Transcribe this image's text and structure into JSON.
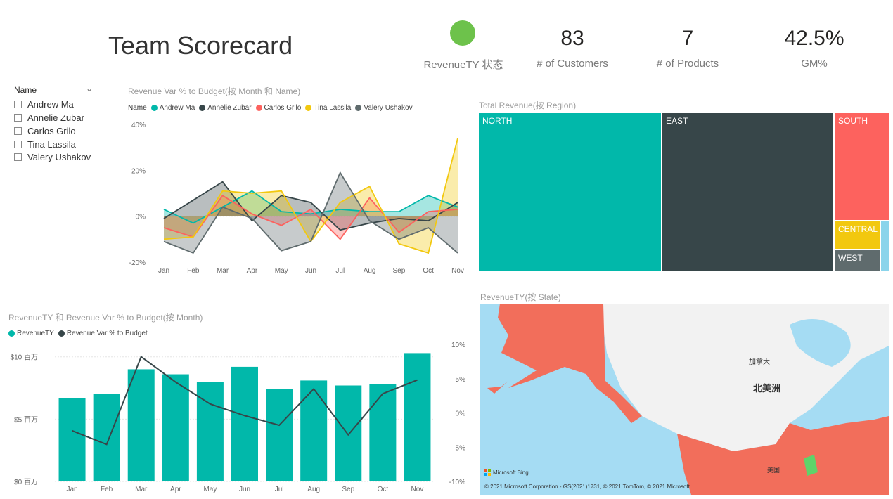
{
  "page_title": "Team Scorecard",
  "kpis": {
    "status_label": "RevenueTY 状态",
    "status_color": "#6dc24b",
    "customers_value": "83",
    "customers_label": "# of Customers",
    "products_value": "7",
    "products_label": "# of Products",
    "gm_value": "42.5%",
    "gm_label": "GM%"
  },
  "slicer": {
    "header": "Name",
    "items": [
      "Andrew Ma",
      "Annelie Zubar",
      "Carlos Grilo",
      "Tina Lassila",
      "Valery Ushakov"
    ]
  },
  "line_chart": {
    "title": "Revenue Var % to Budget(按 Month 和 Name)",
    "legend_label": "Name"
  },
  "combo_chart": {
    "title": "RevenueTY 和 Revenue Var % to Budget(按 Month)",
    "legend": [
      "RevenueTY",
      "Revenue Var % to Budget"
    ]
  },
  "treemap": {
    "title": "Total Revenue(按 Region)",
    "regions": [
      {
        "name": "NORTH",
        "color": "#01b8aa"
      },
      {
        "name": "EAST",
        "color": "#374649"
      },
      {
        "name": "SOUTH",
        "color": "#fd625e"
      },
      {
        "name": "CENTRAL",
        "color": "#f2c80f"
      },
      {
        "name": "WEST",
        "color": "#5f6b6d"
      }
    ]
  },
  "map": {
    "title": "RevenueTY(按 State)",
    "label_canada": "加拿大",
    "label_na": "北美洲",
    "label_usa": "美国",
    "bing": "Microsoft Bing",
    "copyright": "© 2021 Microsoft Corporation - GS(2021)1731, © 2021 TomTom, © 2021 Microsoft"
  },
  "chart_data": [
    {
      "type": "area",
      "title": "Revenue Var % to Budget(按 Month 和 Name)",
      "categories": [
        "Jan",
        "Feb",
        "Mar",
        "Apr",
        "May",
        "Jun",
        "Jul",
        "Aug",
        "Sep",
        "Oct",
        "Nov"
      ],
      "y_ticks": [
        "40%",
        "20%",
        "0%",
        "-20%"
      ],
      "ylim": [
        -20,
        40
      ],
      "legend_position": "top-left",
      "series": [
        {
          "name": "Andrew Ma",
          "color": "#01b8aa",
          "values": [
            3,
            -3,
            4,
            11,
            2,
            1,
            3,
            2,
            2,
            9,
            4
          ]
        },
        {
          "name": "Annelie Zubar",
          "color": "#374649",
          "values": [
            -1,
            7,
            15,
            -2,
            9,
            6,
            -6,
            -3,
            -1,
            -2,
            6
          ]
        },
        {
          "name": "Carlos Grilo",
          "color": "#fd625e",
          "values": [
            -5,
            -9,
            9,
            1,
            -4,
            3,
            -10,
            8,
            -7,
            2,
            3
          ]
        },
        {
          "name": "Tina Lassila",
          "color": "#f2c80f",
          "values": [
            -10,
            -9,
            11,
            10,
            11,
            -11,
            6,
            13,
            -12,
            -16,
            34
          ]
        },
        {
          "name": "Valery Ushakov",
          "color": "#5f6b6d",
          "values": [
            -11,
            -16,
            4,
            -1,
            -15,
            -11,
            19,
            -2,
            -10,
            -5,
            -16
          ]
        }
      ]
    },
    {
      "type": "bar",
      "title": "RevenueTY 和 Revenue Var % to Budget(按 Month)",
      "categories": [
        "Jan",
        "Feb",
        "Mar",
        "Apr",
        "May",
        "Jun",
        "Jul",
        "Aug",
        "Sep",
        "Oct",
        "Nov"
      ],
      "y_left_ticks": [
        "$10 百万",
        "$5 百万",
        "$0 百万"
      ],
      "y_right_ticks": [
        "10%",
        "5%",
        "0%",
        "-5%",
        "-10%"
      ],
      "ylim_left": [
        0,
        11
      ],
      "ylim_right": [
        -10,
        10
      ],
      "series": [
        {
          "name": "RevenueTY",
          "type": "bar",
          "color": "#01b8aa",
          "values": [
            6.7,
            7.0,
            9.0,
            8.6,
            8.0,
            9.2,
            7.4,
            8.1,
            7.7,
            7.8,
            10.3
          ]
        },
        {
          "name": "Revenue Var % to Budget",
          "type": "line",
          "color": "#374649",
          "values": [
            -2.6,
            -4.6,
            8.2,
            4.5,
            1.3,
            -0.4,
            -1.8,
            3.5,
            -3.2,
            2.8,
            4.8
          ]
        }
      ]
    },
    {
      "type": "treemap",
      "title": "Total Revenue(按 Region)",
      "categories": [
        "NORTH",
        "EAST",
        "SOUTH",
        "CENTRAL",
        "WEST"
      ],
      "values": [
        44,
        41,
        10,
        4,
        2
      ]
    }
  ]
}
